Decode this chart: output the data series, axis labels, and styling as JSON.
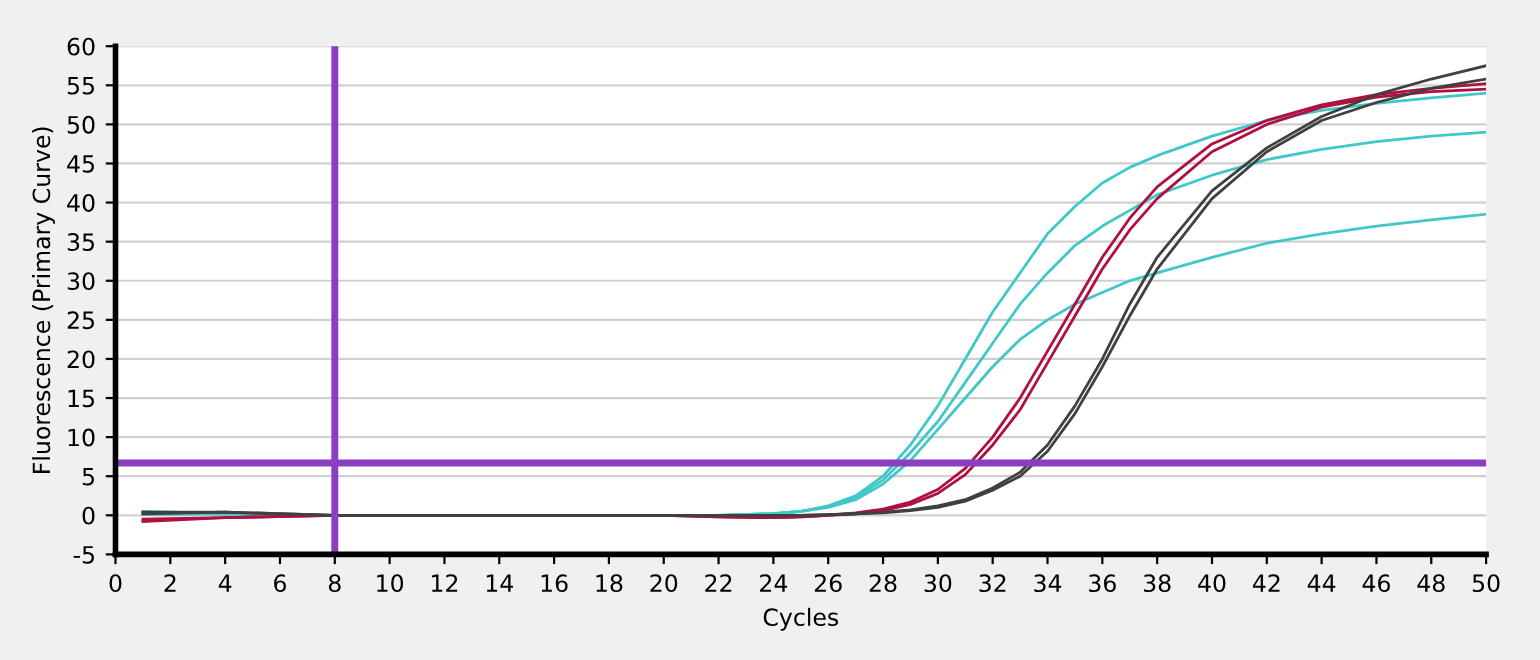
{
  "chart_data": {
    "type": "line",
    "xlabel": "Cycles",
    "ylabel": "Fluorescence (Primary Curve)",
    "x": [
      1,
      4,
      8,
      12,
      16,
      20,
      22,
      24,
      25,
      26,
      27,
      28,
      29,
      30,
      31,
      32,
      33,
      34,
      35,
      36,
      37,
      38,
      40,
      42,
      44,
      46,
      48,
      50
    ],
    "series": [
      {
        "color": "#40c8c8",
        "values": [
          0.5,
          0.2,
          0,
          0,
          0,
          0,
          0,
          0.2,
          0.5,
          1.2,
          2.5,
          5,
          9,
          14,
          20,
          26,
          31,
          36,
          39.5,
          42.5,
          44.5,
          46,
          48.5,
          50.5,
          51.8,
          52.7,
          53.4,
          54
        ]
      },
      {
        "color": "#40c8c8",
        "values": [
          0.3,
          0.2,
          0,
          0,
          0,
          0,
          0,
          0.2,
          0.5,
          1.1,
          2.3,
          4.5,
          8,
          12,
          17,
          22,
          27,
          31,
          34.5,
          37,
          39,
          41,
          43.5,
          45.5,
          46.8,
          47.8,
          48.5,
          49
        ]
      },
      {
        "color": "#40c8c8",
        "values": [
          0.1,
          0.2,
          0,
          0,
          0,
          0,
          0,
          0.2,
          0.5,
          1,
          2,
          4,
          7,
          11,
          15,
          19,
          22.5,
          25,
          27,
          28.5,
          30,
          31,
          33,
          34.8,
          36,
          37,
          37.8,
          38.5
        ]
      },
      {
        "color": "#b01040",
        "values": [
          -0.8,
          -0.3,
          0,
          0,
          0,
          0,
          -0.2,
          -0.3,
          -0.2,
          0,
          0.3,
          0.8,
          1.7,
          3.3,
          6,
          10,
          15,
          21,
          27,
          33,
          38,
          42,
          47.5,
          50.5,
          52.5,
          53.8,
          54.6,
          55.2
        ]
      },
      {
        "color": "#b01040",
        "values": [
          -0.5,
          -0.3,
          0,
          0,
          0,
          0,
          -0.2,
          -0.3,
          -0.2,
          0,
          0.2,
          0.6,
          1.4,
          2.8,
          5.2,
          9,
          13.5,
          19.5,
          25.5,
          31.5,
          36.5,
          40.5,
          46.5,
          50,
          52.2,
          53.5,
          54.2,
          54.5
        ]
      },
      {
        "color": "#404040",
        "values": [
          0.4,
          0.4,
          0,
          0,
          0,
          0,
          0,
          0,
          0,
          0.1,
          0.2,
          0.4,
          0.7,
          1.2,
          2,
          3.5,
          5.5,
          9,
          14,
          20,
          27,
          33,
          41.5,
          47,
          51,
          53.8,
          55.8,
          57.5
        ]
      },
      {
        "color": "#404040",
        "values": [
          0.2,
          0.4,
          0,
          0,
          0,
          0,
          0,
          0,
          0,
          0.1,
          0.2,
          0.3,
          0.6,
          1,
          1.8,
          3.2,
          5,
          8.2,
          13,
          19,
          25.5,
          31.5,
          40.5,
          46.5,
          50.5,
          52.8,
          54.6,
          55.8
        ]
      }
    ],
    "xlim": [
      0,
      50
    ],
    "ylim": [
      -5,
      60
    ],
    "xticks": [
      0,
      2,
      4,
      6,
      8,
      10,
      12,
      14,
      16,
      18,
      20,
      22,
      24,
      26,
      28,
      30,
      32,
      34,
      36,
      38,
      40,
      42,
      44,
      46,
      48,
      50
    ],
    "yticks": [
      -5,
      0,
      5,
      10,
      15,
      20,
      25,
      30,
      35,
      40,
      45,
      50,
      55,
      60
    ],
    "ref_lines": [
      {
        "axis": "x",
        "value": 8,
        "color": "#8b3fc0"
      },
      {
        "axis": "y",
        "value": 6.7,
        "color": "#8b3fc0"
      }
    ],
    "grid": "y",
    "legend": false
  }
}
